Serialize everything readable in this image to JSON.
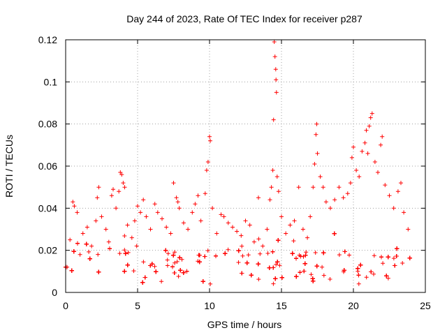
{
  "chart_data": {
    "type": "scatter",
    "title": "Day 244 of 2023, Rate Of TEC Index for receiver p287",
    "xlabel": "GPS time / hours",
    "ylabel": "ROTI / TECUs",
    "xlim": [
      0,
      25
    ],
    "ylim": [
      0,
      0.12
    ],
    "xticks": [
      "0",
      "5",
      "10",
      "15",
      "20",
      "25"
    ],
    "yticks": [
      "0",
      "0.02",
      "0.04",
      "0.06",
      "0.08",
      "0.1",
      "0.12"
    ],
    "grid": true,
    "marker": "plus",
    "color": "#ff0000",
    "series": [
      {
        "points": [
          [
            0.1,
            0.012
          ],
          [
            0.3,
            0.025
          ],
          [
            0.5,
            0.043
          ],
          [
            0.6,
            0.041
          ],
          [
            0.8,
            0.038
          ],
          [
            1.0,
            0.018
          ],
          [
            1.2,
            0.028
          ],
          [
            1.5,
            0.031
          ],
          [
            1.8,
            0.022
          ],
          [
            2.1,
            0.034
          ],
          [
            2.2,
            0.045
          ],
          [
            2.3,
            0.05
          ],
          [
            2.5,
            0.036
          ],
          [
            2.8,
            0.03
          ],
          [
            3.0,
            0.024
          ],
          [
            3.2,
            0.046
          ],
          [
            3.3,
            0.049
          ],
          [
            3.5,
            0.04
          ],
          [
            3.7,
            0.048
          ],
          [
            3.8,
            0.057
          ],
          [
            3.9,
            0.056
          ],
          [
            4.0,
            0.052
          ],
          [
            4.1,
            0.05
          ],
          [
            4.3,
            0.032
          ],
          [
            4.6,
            0.026
          ],
          [
            4.8,
            0.034
          ],
          [
            5.0,
            0.041
          ],
          [
            5.2,
            0.038
          ],
          [
            5.4,
            0.044
          ],
          [
            5.6,
            0.036
          ],
          [
            5.9,
            0.03
          ],
          [
            6.2,
            0.042
          ],
          [
            6.4,
            0.038
          ],
          [
            6.7,
            0.035
          ],
          [
            7.0,
            0.031
          ],
          [
            7.3,
            0.028
          ],
          [
            7.5,
            0.052
          ],
          [
            7.7,
            0.045
          ],
          [
            7.8,
            0.043
          ],
          [
            7.9,
            0.04
          ],
          [
            8.2,
            0.033
          ],
          [
            8.5,
            0.03
          ],
          [
            8.8,
            0.038
          ],
          [
            9.0,
            0.042
          ],
          [
            9.2,
            0.046
          ],
          [
            9.4,
            0.034
          ],
          [
            9.7,
            0.047
          ],
          [
            9.8,
            0.058
          ],
          [
            9.9,
            0.062
          ],
          [
            10.0,
            0.074
          ],
          [
            10.05,
            0.072
          ],
          [
            10.2,
            0.04
          ],
          [
            10.5,
            0.028
          ],
          [
            10.8,
            0.037
          ],
          [
            11.0,
            0.036
          ],
          [
            11.3,
            0.033
          ],
          [
            11.6,
            0.031
          ],
          [
            11.9,
            0.029
          ],
          [
            12.2,
            0.027
          ],
          [
            12.5,
            0.034
          ],
          [
            12.8,
            0.032
          ],
          [
            13.1,
            0.024
          ],
          [
            13.4,
            0.045
          ],
          [
            13.7,
            0.022
          ],
          [
            14.0,
            0.03
          ],
          [
            14.2,
            0.044
          ],
          [
            14.3,
            0.05
          ],
          [
            14.4,
            0.058
          ],
          [
            14.45,
            0.082
          ],
          [
            14.5,
            0.119
          ],
          [
            14.55,
            0.112
          ],
          [
            14.6,
            0.106
          ],
          [
            14.62,
            0.101
          ],
          [
            14.65,
            0.095
          ],
          [
            14.7,
            0.055
          ],
          [
            14.8,
            0.048
          ],
          [
            15.0,
            0.036
          ],
          [
            15.3,
            0.028
          ],
          [
            15.6,
            0.032
          ],
          [
            15.9,
            0.034
          ],
          [
            16.2,
            0.05
          ],
          [
            16.5,
            0.03
          ],
          [
            16.8,
            0.026
          ],
          [
            17.0,
            0.036
          ],
          [
            17.2,
            0.05
          ],
          [
            17.3,
            0.061
          ],
          [
            17.4,
            0.075
          ],
          [
            17.45,
            0.08
          ],
          [
            17.5,
            0.066
          ],
          [
            17.7,
            0.055
          ],
          [
            17.9,
            0.05
          ],
          [
            18.1,
            0.043
          ],
          [
            18.4,
            0.04
          ],
          [
            18.7,
            0.044
          ],
          [
            19.0,
            0.05
          ],
          [
            19.3,
            0.045
          ],
          [
            19.6,
            0.047
          ],
          [
            19.8,
            0.052
          ],
          [
            19.9,
            0.064
          ],
          [
            20.0,
            0.069
          ],
          [
            20.2,
            0.058
          ],
          [
            20.4,
            0.055
          ],
          [
            20.6,
            0.067
          ],
          [
            20.8,
            0.071
          ],
          [
            20.9,
            0.077
          ],
          [
            21.0,
            0.066
          ],
          [
            21.1,
            0.079
          ],
          [
            21.2,
            0.083
          ],
          [
            21.3,
            0.085
          ],
          [
            21.5,
            0.062
          ],
          [
            21.7,
            0.057
          ],
          [
            21.9,
            0.07
          ],
          [
            22.0,
            0.074
          ],
          [
            22.2,
            0.051
          ],
          [
            22.5,
            0.046
          ],
          [
            22.8,
            0.04
          ],
          [
            23.1,
            0.048
          ],
          [
            23.3,
            0.052
          ],
          [
            23.5,
            0.038
          ],
          [
            23.8,
            0.03
          ]
        ]
      }
    ]
  }
}
